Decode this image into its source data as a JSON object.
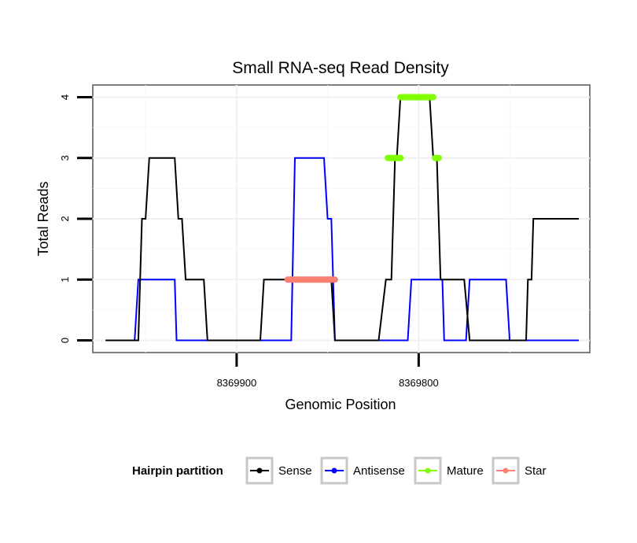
{
  "chart_data": {
    "type": "line",
    "title": "Small RNA-seq Read Density",
    "xlabel": "Genomic Position",
    "ylabel": "Total Reads",
    "x_reversed": true,
    "xlim": [
      8369979,
      8369706
    ],
    "ylim": [
      -0.2,
      4.2
    ],
    "x_ticks": [
      8369900,
      8369800
    ],
    "x_tick_labels": [
      "8369900",
      "8369800"
    ],
    "y_ticks": [
      0,
      1,
      2,
      3,
      4
    ],
    "y_tick_labels": [
      "0",
      "1",
      "2",
      "3",
      "4"
    ],
    "grid": true,
    "legend": {
      "title": "Hairpin partition",
      "position": "bottom",
      "entries": [
        {
          "name": "Sense",
          "color": "#000000"
        },
        {
          "name": "Antisense",
          "color": "#0000ff"
        },
        {
          "name": "Mature",
          "color": "#7fff00"
        },
        {
          "name": "Star",
          "color": "#fa8072"
        }
      ]
    },
    "series": [
      {
        "name": "Sense",
        "color": "#000000",
        "style": "line",
        "x": [
          8369972,
          8369954,
          8369952,
          8369950,
          8369948,
          8369934,
          8369932,
          8369930,
          8369928,
          8369918,
          8369916,
          8369887,
          8369885,
          8369858,
          8369856,
          8369848,
          8369846,
          8369822,
          8369818,
          8369815,
          8369813,
          8369812,
          8369810,
          8369806,
          8369804,
          8369794,
          8369792,
          8369790,
          8369788,
          8369775,
          8369772,
          8369741,
          8369740,
          8369738,
          8369737,
          8369712
        ],
        "y": [
          0,
          0,
          2,
          2,
          3,
          3,
          2,
          2,
          1,
          1,
          0,
          0,
          1,
          1,
          1,
          1,
          0,
          0,
          1,
          1,
          3,
          3,
          4,
          4,
          4,
          4,
          3,
          3,
          1,
          1,
          0,
          0,
          1,
          1,
          2,
          2
        ]
      },
      {
        "name": "Antisense",
        "color": "#0000ff",
        "style": "line",
        "x": [
          8369972,
          8369956,
          8369954,
          8369934,
          8369933,
          8369887,
          8369870,
          8369868,
          8369852,
          8369850,
          8369848,
          8369846,
          8369806,
          8369804,
          8369787,
          8369786,
          8369774,
          8369772,
          8369752,
          8369750,
          8369712
        ],
        "y": [
          0,
          0,
          1,
          1,
          0,
          0,
          0,
          3,
          3,
          2,
          2,
          0,
          0,
          1,
          1,
          0,
          0,
          1,
          1,
          0,
          0
        ]
      },
      {
        "name": "Mature",
        "color": "#7fff00",
        "style": "thick",
        "segments": [
          {
            "x": [
              8369817,
              8369810
            ],
            "y": 3
          },
          {
            "x": [
              8369810,
              8369792
            ],
            "y": 4
          },
          {
            "x": [
              8369791,
              8369789
            ],
            "y": 3
          }
        ]
      },
      {
        "name": "Star",
        "color": "#fa8072",
        "style": "thick",
        "segments": [
          {
            "x": [
              8369872,
              8369846
            ],
            "y": 1
          }
        ]
      }
    ]
  }
}
